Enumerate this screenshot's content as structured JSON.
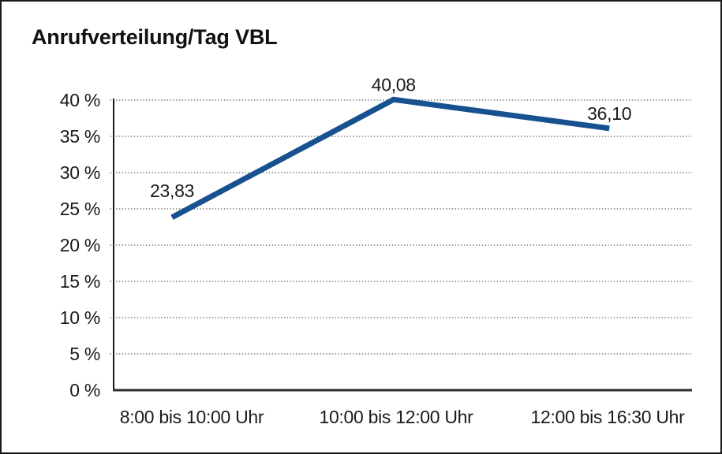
{
  "window": {
    "background": "#ffffff",
    "frame_border_color": "#1a1a1a"
  },
  "chart_data": {
    "type": "line",
    "title": "Anrufverteilung/Tag VBL",
    "categories": [
      "8:00 bis 10:00 Uhr",
      "10:00 bis 12:00 Uhr",
      "12:00 bis 16:30 Uhr"
    ],
    "series": [
      {
        "name": "Anrufverteilung/Tag VBL",
        "values": [
          23.83,
          40.08,
          36.1
        ],
        "point_labels": [
          "23,83",
          "40,08",
          "36,10"
        ]
      }
    ],
    "y_ticks": [
      {
        "value": 0,
        "label": "0 %"
      },
      {
        "value": 5,
        "label": "5 %"
      },
      {
        "value": 10,
        "label": "10 %"
      },
      {
        "value": 15,
        "label": "15 %"
      },
      {
        "value": 20,
        "label": "20 %"
      },
      {
        "value": 25,
        "label": "25 %"
      },
      {
        "value": 30,
        "label": "30 %"
      },
      {
        "value": 35,
        "label": "35 %"
      },
      {
        "value": 40,
        "label": "40 %"
      }
    ],
    "ylim": [
      0,
      40
    ],
    "xlabel": "",
    "ylabel": "",
    "grid": "horizontal-dotted",
    "legend": "none",
    "colors": {
      "line": "#17518F",
      "text": "#1a1a1a",
      "gridline": "#5f5f5f"
    }
  }
}
